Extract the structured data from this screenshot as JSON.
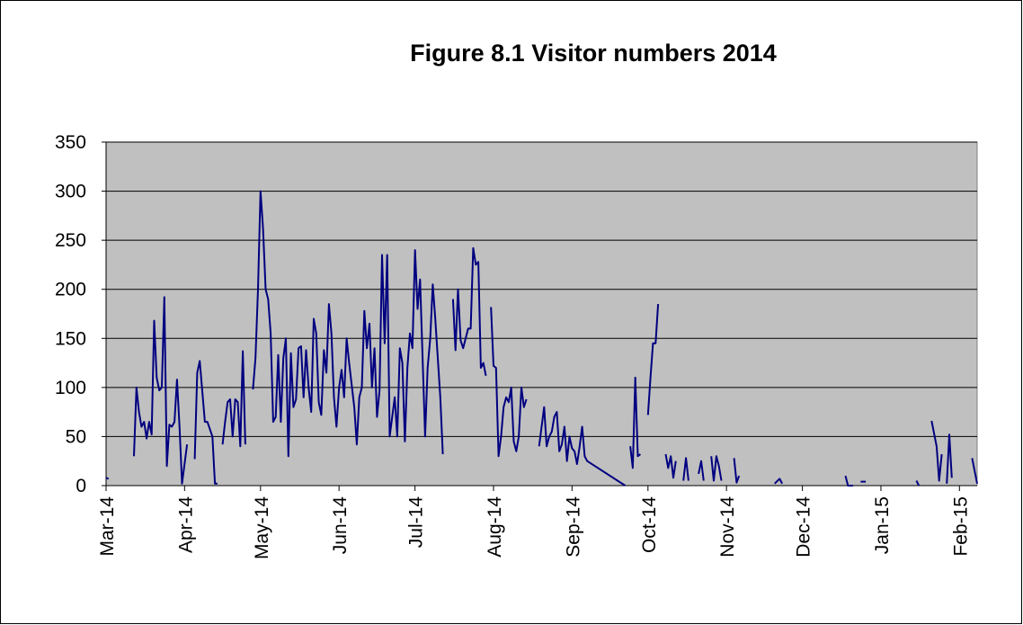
{
  "chart_data": {
    "type": "line",
    "title": "Figure 8.1 Visitor numbers 2014",
    "xlim": [
      0,
      344
    ],
    "xticks": [
      {
        "value": 0,
        "label": "Mar-14"
      },
      {
        "value": 31,
        "label": "Apr-14"
      },
      {
        "value": 61,
        "label": "May-14"
      },
      {
        "value": 92,
        "label": "Jun-14"
      },
      {
        "value": 122,
        "label": "Jul-14"
      },
      {
        "value": 153,
        "label": "Aug-14"
      },
      {
        "value": 184,
        "label": "Sep-14"
      },
      {
        "value": 214,
        "label": "Oct-14"
      },
      {
        "value": 245,
        "label": "Nov-14"
      },
      {
        "value": 275,
        "label": "Dec-14"
      },
      {
        "value": 306,
        "label": "Jan-15"
      },
      {
        "value": 337,
        "label": "Feb-15"
      }
    ],
    "ylim": [
      0,
      350
    ],
    "yticks": [
      0,
      50,
      100,
      150,
      200,
      250,
      300,
      350
    ],
    "grid": true,
    "series": [
      {
        "color": "#000080",
        "x": [
          0,
          1,
          5,
          11,
          12,
          13,
          14,
          15,
          16,
          17,
          18,
          19,
          20,
          21,
          22,
          23,
          24,
          25,
          26,
          27,
          28,
          29,
          30,
          32,
          34,
          35,
          36,
          37,
          39,
          40,
          42,
          43,
          44,
          45,
          46,
          47,
          48,
          49,
          50,
          51,
          52,
          53,
          54,
          55,
          57,
          58,
          59,
          60,
          61,
          62,
          63,
          64,
          65,
          66,
          67,
          68,
          69,
          70,
          71,
          72,
          73,
          74,
          75,
          76,
          77,
          78,
          79,
          80,
          81,
          82,
          83,
          84,
          85,
          86,
          87,
          88,
          89,
          90,
          91,
          92,
          93,
          94,
          95,
          96,
          98,
          99,
          100,
          101,
          102,
          103,
          104,
          105,
          106,
          107,
          108,
          109,
          110,
          111,
          112,
          113,
          114,
          115,
          116,
          117,
          118,
          119,
          120,
          121,
          122,
          123,
          124,
          125,
          126,
          127,
          128,
          129,
          130,
          131,
          132,
          133,
          135,
          137,
          138,
          139,
          140,
          141,
          142,
          143,
          144,
          145,
          146,
          147,
          148,
          149,
          150,
          151,
          152,
          153,
          154,
          155,
          156,
          157,
          158,
          159,
          160,
          161,
          162,
          163,
          164,
          165,
          166,
          169,
          171,
          172,
          173,
          174,
          175,
          176,
          177,
          178,
          179,
          180,
          181,
          182,
          183,
          184,
          185,
          186,
          187,
          188,
          189,
          190,
          205,
          206,
          207,
          208,
          209,
          210,
          211,
          212,
          214,
          215,
          216,
          217,
          218,
          220,
          221,
          222,
          223,
          224,
          225,
          226,
          228,
          229,
          230,
          232,
          234,
          235,
          236,
          237,
          239,
          240,
          241,
          242,
          243,
          244,
          248,
          249,
          250,
          252,
          264,
          266,
          267,
          270,
          292,
          293,
          295,
          297,
          298,
          300,
          301,
          320,
          321,
          324,
          326,
          328,
          329,
          330,
          331,
          332,
          333,
          334,
          336,
          342,
          344
        ],
        "values": [
          8,
          7,
          null,
          30,
          100,
          75,
          60,
          65,
          48,
          65,
          52,
          168,
          110,
          97,
          100,
          192,
          20,
          62,
          60,
          65,
          108,
          60,
          2,
          42,
          null,
          27,
          115,
          127,
          65,
          65,
          50,
          2,
          2,
          null,
          42,
          65,
          85,
          88,
          50,
          88,
          85,
          40,
          137,
          42,
          null,
          98,
          130,
          200,
          300,
          262,
          200,
          190,
          155,
          65,
          70,
          133,
          65,
          130,
          150,
          30,
          135,
          80,
          88,
          140,
          142,
          90,
          138,
          100,
          75,
          170,
          155,
          85,
          72,
          138,
          115,
          185,
          155,
          90,
          60,
          100,
          118,
          90,
          150,
          125,
          80,
          42,
          90,
          100,
          178,
          140,
          165,
          100,
          140,
          70,
          97,
          235,
          145,
          235,
          50,
          70,
          90,
          50,
          140,
          125,
          45,
          120,
          155,
          140,
          240,
          180,
          210,
          130,
          50,
          120,
          150,
          205,
          170,
          130,
          90,
          32,
          null,
          190,
          138,
          200,
          148,
          140,
          150,
          160,
          160,
          242,
          225,
          228,
          120,
          125,
          112,
          null,
          182,
          122,
          120,
          30,
          50,
          80,
          90,
          85,
          100,
          45,
          35,
          50,
          100,
          80,
          88,
          null,
          40,
          60,
          80,
          40,
          50,
          55,
          70,
          75,
          35,
          42,
          60,
          25,
          50,
          38,
          35,
          22,
          40,
          60,
          30,
          25,
          0,
          null,
          40,
          18,
          110,
          30,
          32,
          null,
          72,
          110,
          145,
          145,
          185,
          null,
          32,
          18,
          30,
          8,
          25,
          null,
          5,
          28,
          5,
          null,
          12,
          25,
          5,
          null,
          30,
          5,
          30,
          20,
          5,
          null,
          28,
          3,
          10,
          null,
          2,
          7,
          2,
          null,
          10,
          0,
          0,
          null,
          4,
          4,
          null,
          5,
          0,
          null,
          66,
          40,
          5,
          32,
          null,
          2,
          52,
          8,
          null,
          28,
          2
        ]
      }
    ]
  }
}
